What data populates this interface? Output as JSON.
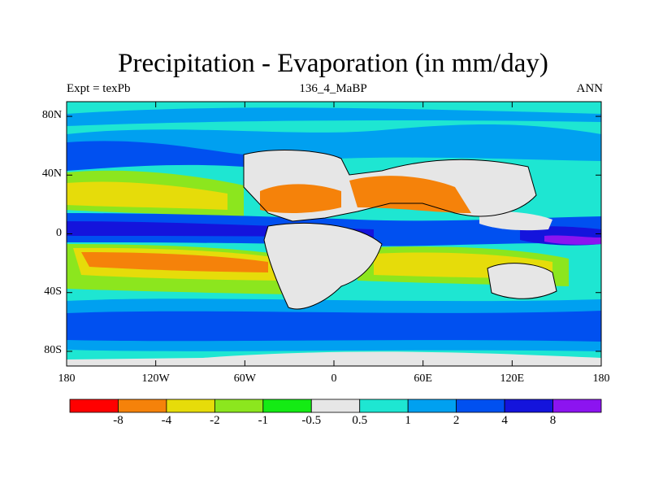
{
  "title": "Precipitation - Evaporation (in mm/day)",
  "left_string": "Expt = texPb",
  "center_string": "136_4_MaBP",
  "right_string": "ANN",
  "y_axis": {
    "ticks": [
      {
        "lat": 80,
        "label": "80N"
      },
      {
        "lat": 40,
        "label": "40N"
      },
      {
        "lat": 0,
        "label": "0"
      },
      {
        "lat": -40,
        "label": "40S"
      },
      {
        "lat": -80,
        "label": "80S"
      }
    ],
    "range": [
      -90,
      90
    ]
  },
  "x_axis": {
    "ticks": [
      {
        "lon": -180,
        "label": "180"
      },
      {
        "lon": -120,
        "label": "120W"
      },
      {
        "lon": -60,
        "label": "60W"
      },
      {
        "lon": 0,
        "label": "0"
      },
      {
        "lon": 60,
        "label": "60E"
      },
      {
        "lon": 120,
        "label": "120E"
      },
      {
        "lon": 180,
        "label": "180"
      }
    ],
    "range": [
      -180,
      180
    ]
  },
  "colorbar": {
    "colors": [
      "#ff0000",
      "#f5820a",
      "#e6dc0a",
      "#8ce61e",
      "#14eb14",
      "#e6e6e6",
      "#1ee6d2",
      "#00a0f0",
      "#0050f0",
      "#1414dc",
      "#8c14f0"
    ],
    "labels": [
      "-8",
      "-4",
      "-2",
      "-1",
      "-0.5",
      "0.5",
      "1",
      "2",
      "4",
      "8"
    ]
  }
}
